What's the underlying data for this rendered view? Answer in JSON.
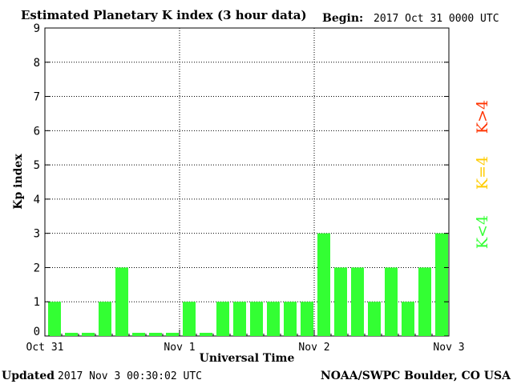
{
  "chart_data": {
    "type": "bar",
    "title": "Estimated Planetary K index (3 hour data)",
    "begin_label": "Begin:",
    "begin_value": "2017 Oct 31 0000 UTC",
    "ylabel": "Kp index",
    "xlabel": "Universal Time",
    "ylim": [
      0,
      9
    ],
    "yticks": [
      "0",
      "1",
      "2",
      "3",
      "4",
      "5",
      "6",
      "7",
      "8",
      "9"
    ],
    "xticks": [
      "Oct 31",
      "Nov 1",
      "Nov 2",
      "Nov 3"
    ],
    "values": [
      1,
      0,
      0,
      1,
      2,
      0,
      0,
      0,
      1,
      0,
      1,
      1,
      1,
      1,
      1,
      1,
      3,
      2,
      2,
      1,
      2,
      1,
      2,
      3
    ],
    "bar_color": "#33ff33",
    "grid": "dotted",
    "legend": {
      "items": [
        {
          "label": "K<4",
          "color": "#33ff33"
        },
        {
          "label": "K=4",
          "color": "#ffcc00"
        },
        {
          "label": "K>4",
          "color": "#ff3300"
        }
      ],
      "placement": "right, vertical"
    }
  },
  "footer": {
    "updated_label": "Updated",
    "updated_value": "2017 Nov  3 00:30:02 UTC",
    "source": "NOAA/SWPC Boulder, CO USA"
  }
}
